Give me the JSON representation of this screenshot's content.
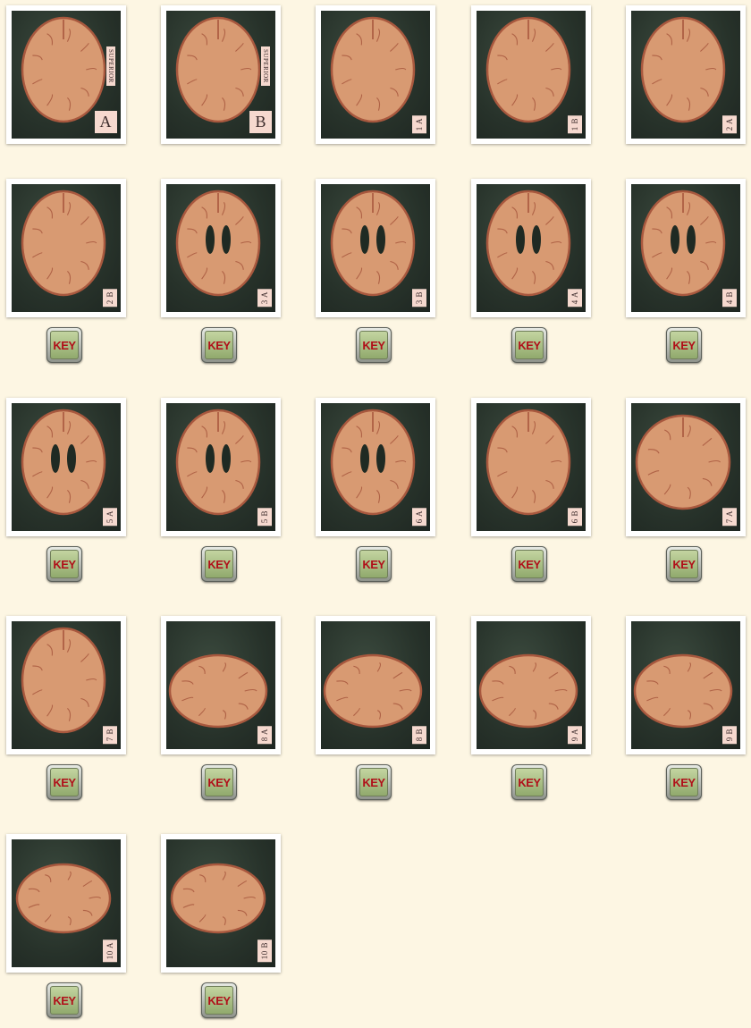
{
  "gallery": {
    "slides": [
      {
        "label": "A",
        "superior": "SUPERIOR",
        "key": ""
      },
      {
        "label": "B",
        "superior": "SUPERIOR",
        "key": ""
      },
      {
        "label": "1 A",
        "key": ""
      },
      {
        "label": "1 B",
        "key": ""
      },
      {
        "label": "2 A",
        "key": ""
      },
      {
        "label": "2 B",
        "key": "KEY"
      },
      {
        "label": "3 A",
        "key": "KEY"
      },
      {
        "label": "3 B",
        "key": "KEY"
      },
      {
        "label": "4 A",
        "key": "KEY"
      },
      {
        "label": "4 B",
        "key": "KEY"
      },
      {
        "label": "5 A",
        "key": "KEY"
      },
      {
        "label": "5 B",
        "key": "KEY"
      },
      {
        "label": "6 A",
        "key": "KEY"
      },
      {
        "label": "6 B",
        "key": "KEY"
      },
      {
        "label": "7 A",
        "key": "KEY"
      },
      {
        "label": "7 B",
        "key": "KEY"
      },
      {
        "label": "8 A",
        "key": "KEY"
      },
      {
        "label": "8 B",
        "key": "KEY"
      },
      {
        "label": "9 A",
        "key": "KEY"
      },
      {
        "label": "9 B",
        "key": "KEY"
      },
      {
        "label": "10 A",
        "key": "KEY"
      },
      {
        "label": "10 B",
        "key": "KEY"
      }
    ]
  },
  "colors": {
    "page_background": "#fdf6e3",
    "tissue": "#d89a72",
    "tissue_dark": "#a8583e",
    "backdrop": "#27322a",
    "key_text": "#b0101a",
    "key_face": "#a8bf82"
  }
}
